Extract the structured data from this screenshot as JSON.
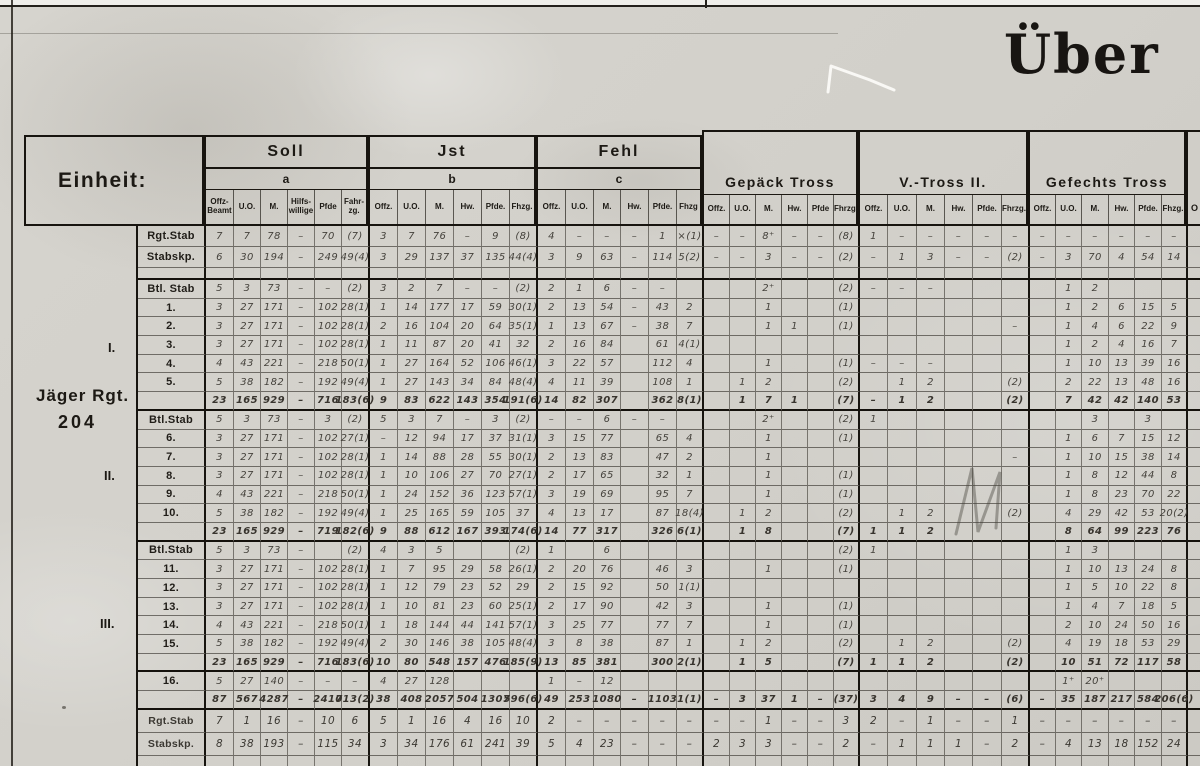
{
  "title": "Über",
  "einheit_label": "Einheit:",
  "unit": {
    "line1": "Jäger Rgt.",
    "line2": "204"
  },
  "battalions": [
    "I.",
    "II.",
    "III."
  ],
  "partial_col_header": "O",
  "sections": [
    {
      "name": "Soll",
      "letter": "a",
      "cols": [
        "Offz-\nBeamt",
        "U.O.",
        "M.",
        "Hilfs-\nwillige",
        "Pfde",
        "Fahr-\nzg."
      ]
    },
    {
      "name": "Jst",
      "letter": "b",
      "cols": [
        "Offz.",
        "U.O.",
        "M.",
        "Hw.",
        "Pfde.",
        "Fhzg."
      ]
    },
    {
      "name": "Fehl",
      "letter": "c",
      "cols": [
        "Offz.",
        "U.O.",
        "M.",
        "Hw.",
        "Pfde.",
        "Fhzg"
      ]
    },
    {
      "name": "Gepäck Tross",
      "letter": "",
      "cols": [
        "Offz.",
        "U.O.",
        "M.",
        "Hw.",
        "Pfde",
        "Fhrzg."
      ]
    },
    {
      "name": "V.-Tross  II.",
      "letter": "",
      "cols": [
        "Offz.",
        "U.O.",
        "M.",
        "Hw.",
        "Pfde.",
        "Fhrzg."
      ]
    },
    {
      "name": "Gefechts Tross",
      "letter": "",
      "cols": [
        "Offz.",
        "U.O.",
        "M.",
        "Hw.",
        "Pfde.",
        "Fhzg."
      ]
    }
  ],
  "rows": [
    {
      "label": "Rgt.Stab",
      "kind": "data",
      "cells": [
        "7",
        "7",
        "78",
        "–",
        "70",
        "(7)",
        "3",
        "7",
        "76",
        "–",
        "9",
        "(8)",
        "4",
        "–",
        "–",
        "–",
        "1",
        "×(1)",
        "–",
        "–",
        "8⁺",
        "–",
        "–",
        "(8)",
        "1",
        "–",
        "–",
        "–",
        "–",
        "–",
        "–",
        "–",
        "–",
        "–",
        "–",
        "–"
      ]
    },
    {
      "label": "Stabskp.",
      "kind": "data",
      "cells": [
        "6",
        "30",
        "194",
        "–",
        "249",
        "49(4)",
        "3",
        "29",
        "137",
        "37",
        "135",
        "44(4)",
        "3",
        "9",
        "63",
        "–",
        "114",
        "5(2)",
        "–",
        "–",
        "3",
        "–",
        "–",
        "(2)",
        "–",
        "1",
        "3",
        "–",
        "–",
        "(2)",
        "–",
        "3",
        "70",
        "4",
        "54",
        "14"
      ]
    },
    {
      "label": "",
      "kind": "spacer",
      "cells": [
        "",
        "",
        "",
        "",
        "",
        "",
        "",
        "",
        "",
        "",
        "",
        "",
        "",
        "",
        "",
        "",
        "",
        "",
        "",
        "",
        "",
        "",
        "",
        "",
        "",
        "",
        "",
        "",
        "",
        "",
        "",
        "",
        "",
        "",
        "",
        ""
      ]
    },
    {
      "label": "Btl. Stab",
      "kind": "data",
      "cells": [
        "5",
        "3",
        "73",
        "–",
        "–",
        "(2)",
        "3",
        "2",
        "7",
        "–",
        "–",
        "(2)",
        "2",
        "1",
        "6",
        "–",
        "–",
        "",
        "",
        "",
        "2⁺",
        "",
        "",
        "(2)",
        "–",
        "–",
        "–",
        "",
        "",
        "",
        "",
        "1",
        "2",
        "",
        "",
        ""
      ]
    },
    {
      "label": "1.",
      "kind": "data",
      "cells": [
        "3",
        "27",
        "171",
        "–",
        "102",
        "28(1)",
        "1",
        "14",
        "177",
        "17",
        "59",
        "30(1)",
        "2",
        "13",
        "54",
        "–",
        "43",
        "2",
        "",
        "",
        "1",
        "",
        "",
        "(1)",
        "",
        "",
        "",
        "",
        "",
        "",
        "",
        "1",
        "2",
        "6",
        "15",
        "5"
      ]
    },
    {
      "label": "2.",
      "kind": "data",
      "cells": [
        "3",
        "27",
        "171",
        "–",
        "102",
        "28(1)",
        "2",
        "16",
        "104",
        "20",
        "64",
        "35(1)",
        "1",
        "13",
        "67",
        "–",
        "38",
        "7",
        "",
        "",
        "1",
        "1",
        "",
        "(1)",
        "",
        "",
        "",
        "",
        "",
        "–",
        "",
        "1",
        "4",
        "6",
        "22",
        "9"
      ]
    },
    {
      "label": "3.",
      "kind": "data",
      "cells": [
        "3",
        "27",
        "171",
        "–",
        "102",
        "28(1)",
        "1",
        "11",
        "87",
        "20",
        "41",
        "32",
        "2",
        "16",
        "84",
        "",
        "61",
        "4(1)",
        "",
        "",
        "",
        "",
        "",
        "",
        "",
        "",
        "",
        "",
        "",
        "",
        "",
        "1",
        "2",
        "4",
        "16",
        "7"
      ]
    },
    {
      "label": "4.",
      "kind": "data",
      "cells": [
        "4",
        "43",
        "221",
        "–",
        "218",
        "50(1)",
        "1",
        "27",
        "164",
        "52",
        "106",
        "46(1)",
        "3",
        "22",
        "57",
        "",
        "112",
        "4",
        "",
        "",
        "1",
        "",
        "",
        "(1)",
        "–",
        "–",
        "–",
        "",
        "",
        "",
        "",
        "1",
        "10",
        "13",
        "39",
        "16"
      ]
    },
    {
      "label": "5.",
      "kind": "data",
      "cells": [
        "5",
        "38",
        "182",
        "–",
        "192",
        "49(4)",
        "1",
        "27",
        "143",
        "34",
        "84",
        "48(4)",
        "4",
        "11",
        "39",
        "",
        "108",
        "1",
        "",
        "1",
        "2",
        "",
        "",
        "(2)",
        "",
        "1",
        "2",
        "",
        "",
        "(2)",
        "",
        "2",
        "22",
        "13",
        "48",
        "16"
      ]
    },
    {
      "label": "",
      "kind": "sum",
      "cells": [
        "23",
        "165",
        "929",
        "–",
        "716",
        "183(6)",
        "9",
        "83",
        "622",
        "143",
        "354",
        "191(6)",
        "14",
        "82",
        "307",
        "",
        "362",
        "8(1)",
        "",
        "1",
        "7",
        "1",
        "",
        "(7)",
        "–",
        "1",
        "2",
        "",
        "",
        "(2)",
        "",
        "7",
        "42",
        "42",
        "140",
        "53"
      ]
    },
    {
      "label": "Btl.Stab",
      "kind": "data",
      "cells": [
        "5",
        "3",
        "73",
        "–",
        "3",
        "(2)",
        "5",
        "3",
        "7",
        "–",
        "3",
        "(2)",
        "–",
        "–",
        "6",
        "–",
        "–",
        "",
        "",
        "",
        "2⁺",
        "",
        "",
        "(2)",
        "1",
        "",
        "",
        "",
        "",
        "",
        "",
        "",
        "3",
        "",
        "3",
        ""
      ]
    },
    {
      "label": "6.",
      "kind": "data",
      "cells": [
        "3",
        "27",
        "171",
        "–",
        "102",
        "27(1)",
        "–",
        "12",
        "94",
        "17",
        "37",
        "31(1)",
        "3",
        "15",
        "77",
        "",
        "65",
        "4",
        "",
        "",
        "1",
        "",
        "",
        "(1)",
        "",
        "",
        "",
        "",
        "",
        "",
        "",
        "1",
        "6",
        "7",
        "15",
        "12"
      ]
    },
    {
      "label": "7.",
      "kind": "data",
      "cells": [
        "3",
        "27",
        "171",
        "–",
        "102",
        "28(1)",
        "1",
        "14",
        "88",
        "28",
        "55",
        "30(1)",
        "2",
        "13",
        "83",
        "",
        "47",
        "2",
        "",
        "",
        "1",
        "",
        "",
        "",
        "",
        "",
        "",
        "",
        "",
        "–",
        "",
        "1",
        "10",
        "15",
        "38",
        "14"
      ]
    },
    {
      "label": "8.",
      "kind": "data",
      "cells": [
        "3",
        "27",
        "171",
        "–",
        "102",
        "28(1)",
        "1",
        "10",
        "106",
        "27",
        "70",
        "27(1)",
        "2",
        "17",
        "65",
        "",
        "32",
        "1",
        "",
        "",
        "1",
        "",
        "",
        "(1)",
        "",
        "",
        "",
        "",
        "",
        "",
        "",
        "1",
        "8",
        "12",
        "44",
        "8"
      ]
    },
    {
      "label": "9.",
      "kind": "data",
      "cells": [
        "4",
        "43",
        "221",
        "–",
        "218",
        "50(1)",
        "1",
        "24",
        "152",
        "36",
        "123",
        "57(1)",
        "3",
        "19",
        "69",
        "",
        "95",
        "7",
        "",
        "",
        "1",
        "",
        "",
        "(1)",
        "",
        "",
        "",
        "",
        "",
        "",
        "",
        "1",
        "8",
        "23",
        "70",
        "22"
      ]
    },
    {
      "label": "10.",
      "kind": "data",
      "cells": [
        "5",
        "38",
        "182",
        "–",
        "192",
        "49(4)",
        "1",
        "25",
        "165",
        "59",
        "105",
        "37",
        "4",
        "13",
        "17",
        "",
        "87",
        "18(4)",
        "",
        "1",
        "2",
        "",
        "",
        "(2)",
        "",
        "1",
        "2",
        "",
        "",
        "(2)",
        "",
        "4",
        "29",
        "42",
        "53",
        "20(2)"
      ]
    },
    {
      "label": "",
      "kind": "sum",
      "cells": [
        "23",
        "165",
        "929",
        "–",
        "719",
        "182(6)",
        "9",
        "88",
        "612",
        "167",
        "393",
        "174(6)",
        "14",
        "77",
        "317",
        "",
        "326",
        "6(1)",
        "",
        "1",
        "8",
        "",
        "",
        "(7)",
        "1",
        "1",
        "2",
        "",
        "",
        "",
        "",
        "8",
        "64",
        "99",
        "223",
        "76"
      ]
    },
    {
      "label": "Btl.Stab",
      "kind": "data",
      "cells": [
        "5",
        "3",
        "73",
        "–",
        "",
        "(2)",
        "4",
        "3",
        "5",
        "",
        "",
        "(2)",
        "1",
        "",
        "6",
        "",
        "",
        "",
        "",
        "",
        "",
        "",
        "",
        "(2)",
        "1",
        "",
        "",
        "",
        "",
        "",
        "",
        "1",
        "3",
        "",
        "",
        ""
      ]
    },
    {
      "label": "11.",
      "kind": "data",
      "cells": [
        "3",
        "27",
        "171",
        "–",
        "102",
        "28(1)",
        "1",
        "7",
        "95",
        "29",
        "58",
        "26(1)",
        "2",
        "20",
        "76",
        "",
        "46",
        "3",
        "",
        "",
        "1",
        "",
        "",
        "(1)",
        "",
        "",
        "",
        "",
        "",
        "",
        "",
        "1",
        "10",
        "13",
        "24",
        "8"
      ]
    },
    {
      "label": "12.",
      "kind": "data",
      "cells": [
        "3",
        "27",
        "171",
        "–",
        "102",
        "28(1)",
        "1",
        "12",
        "79",
        "23",
        "52",
        "29",
        "2",
        "15",
        "92",
        "",
        "50",
        "1(1)",
        "",
        "",
        "",
        "",
        "",
        "",
        "",
        "",
        "",
        "",
        "",
        "",
        "",
        "1",
        "5",
        "10",
        "22",
        "8"
      ]
    },
    {
      "label": "13.",
      "kind": "data",
      "cells": [
        "3",
        "27",
        "171",
        "–",
        "102",
        "28(1)",
        "1",
        "10",
        "81",
        "23",
        "60",
        "25(1)",
        "2",
        "17",
        "90",
        "",
        "42",
        "3",
        "",
        "",
        "1",
        "",
        "",
        "(1)",
        "",
        "",
        "",
        "",
        "",
        "",
        "",
        "1",
        "4",
        "7",
        "18",
        "5"
      ]
    },
    {
      "label": "14.",
      "kind": "data",
      "cells": [
        "4",
        "43",
        "221",
        "–",
        "218",
        "50(1)",
        "1",
        "18",
        "144",
        "44",
        "141",
        "57(1)",
        "3",
        "25",
        "77",
        "",
        "77",
        "7",
        "",
        "",
        "1",
        "",
        "",
        "(1)",
        "",
        "",
        "",
        "",
        "",
        "",
        "",
        "2",
        "10",
        "24",
        "50",
        "16"
      ]
    },
    {
      "label": "15.",
      "kind": "data",
      "cells": [
        "5",
        "38",
        "182",
        "–",
        "192",
        "49(4)",
        "2",
        "30",
        "146",
        "38",
        "105",
        "48(4)",
        "3",
        "8",
        "38",
        "",
        "87",
        "1",
        "",
        "1",
        "2",
        "",
        "",
        "(2)",
        "",
        "1",
        "2",
        "",
        "",
        "(2)",
        "",
        "4",
        "19",
        "18",
        "53",
        "29"
      ]
    },
    {
      "label": "",
      "kind": "sum",
      "cells": [
        "23",
        "165",
        "929",
        "–",
        "716",
        "183(6)",
        "10",
        "80",
        "548",
        "157",
        "476",
        "185(9)",
        "13",
        "85",
        "381",
        "",
        "300",
        "2(1)",
        "",
        "1",
        "5",
        "",
        "",
        "(7)",
        "1",
        "1",
        "2",
        "",
        "",
        "(2)",
        "",
        "10",
        "51",
        "72",
        "117",
        "58"
      ]
    },
    {
      "label": "16.",
      "kind": "data",
      "cells": [
        "5",
        "27",
        "140",
        "–",
        "–",
        "–",
        "4",
        "27",
        "128",
        "",
        "",
        "",
        "1",
        "–",
        "12",
        "",
        "",
        "",
        "",
        "",
        "",
        "",
        "",
        "",
        "",
        "",
        "",
        "",
        "",
        "",
        "",
        "1⁺",
        "20⁺",
        "",
        "",
        ""
      ]
    },
    {
      "label": "",
      "kind": "grand",
      "cells": [
        "87",
        "567",
        "4287",
        "–",
        "2410",
        "713(2)",
        "38",
        "408",
        "2057",
        "504",
        "1307",
        "596(6)",
        "49",
        "253",
        "1080",
        "–",
        "1103",
        "1(1)",
        "–",
        "3",
        "37",
        "1",
        "–",
        "(37)",
        "3",
        "4",
        "9",
        "–",
        "–",
        "(6)",
        "–",
        "35",
        "187",
        "217",
        "584",
        "206(6)"
      ]
    },
    {
      "label": "Rgt.Stab",
      "kind": "bottom",
      "cells": [
        "7",
        "1",
        "16",
        "–",
        "10",
        "6",
        "5",
        "1",
        "16",
        "4",
        "16",
        "10",
        "2",
        "–",
        "–",
        "–",
        "–",
        "–",
        "–",
        "–",
        "1",
        "–",
        "–",
        "3",
        "2",
        "–",
        "1",
        "–",
        "–",
        "1",
        "–",
        "–",
        "–",
        "–",
        "–",
        "–"
      ]
    },
    {
      "label": "Stabskp.",
      "kind": "bottom",
      "cells": [
        "8",
        "38",
        "193",
        "–",
        "115",
        "34",
        "3",
        "34",
        "176",
        "61",
        "241",
        "39",
        "5",
        "4",
        "23",
        "–",
        "–",
        "–",
        "2",
        "3",
        "3",
        "–",
        "–",
        "2",
        "–",
        "1",
        "1",
        "1",
        "–",
        "2",
        "–",
        "4",
        "13",
        "18",
        "152",
        "24"
      ]
    },
    {
      "label": "",
      "kind": "empty",
      "cells": [
        "",
        "",
        "",
        "",
        "",
        "",
        "",
        "",
        "",
        "",
        "",
        "",
        "",
        "",
        "",
        "",
        "",
        "",
        "",
        "",
        "",
        "",
        "",
        "",
        "",
        "",
        "",
        "",
        "",
        "",
        "",
        "",
        "",
        "",
        "",
        ""
      ]
    }
  ]
}
